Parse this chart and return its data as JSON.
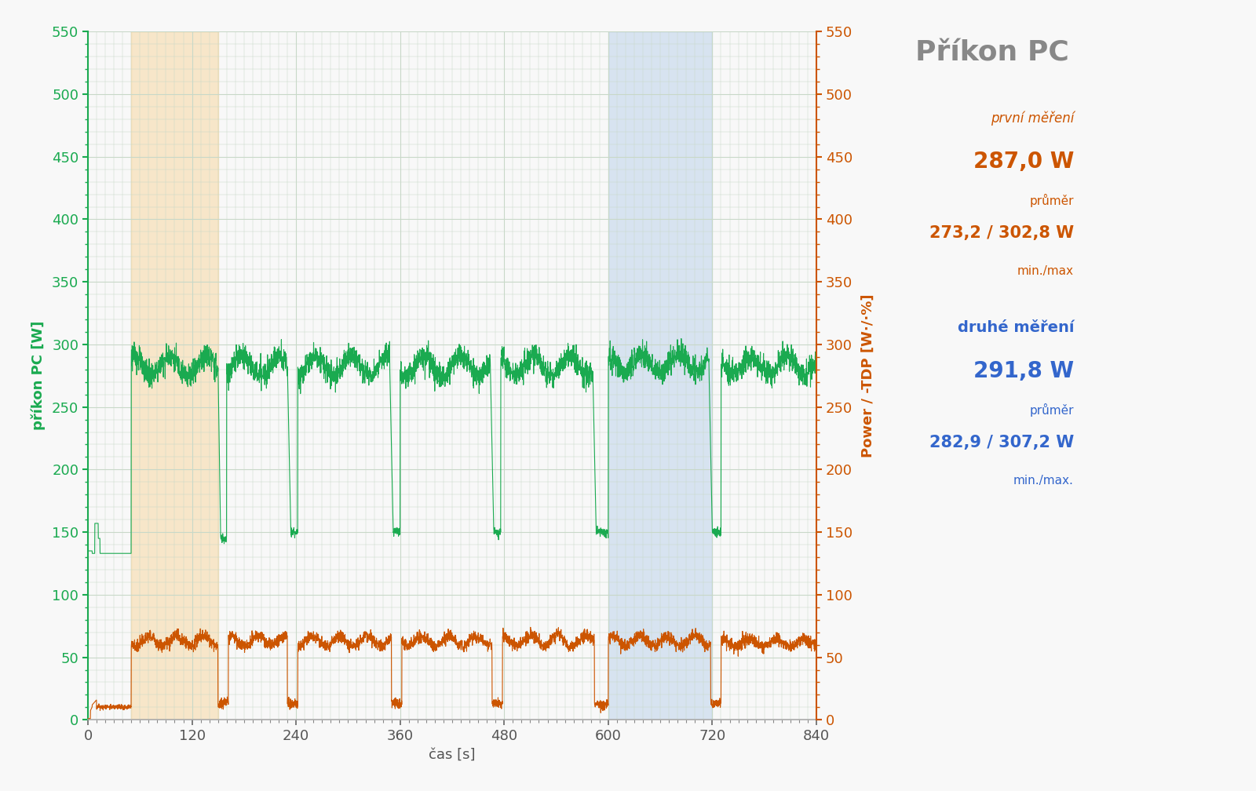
{
  "title": "Příkon PC",
  "ylabel_left": "příkon PC [W]",
  "ylabel_right": "Power / -TDP [W·/·%]",
  "xlabel": "čas [s]",
  "xlim": [
    0,
    840
  ],
  "ylim": [
    0,
    550
  ],
  "bg_color": "#f8f8f8",
  "grid_color": "#c8d8c8",
  "orange_region": [
    50,
    150
  ],
  "blue_region": [
    600,
    720
  ],
  "green_color": "#1aaa50",
  "orange_color": "#cc5500",
  "title_color": "#888888",
  "orange_text_color": "#cc5500",
  "blue_text_color": "#3366cc",
  "annotation1_line1": "první měření",
  "annotation1_line2": "287,0 W",
  "annotation1_line3": "průměr",
  "annotation1_line4": "273,2 / 302,8 W",
  "annotation1_line5": "min./max",
  "annotation2_line1": "druhé měření",
  "annotation2_line2": "291,8 W",
  "annotation2_line3": "průměr",
  "annotation2_line4": "282,9 / 307,2 W",
  "annotation2_line5": "min./max."
}
